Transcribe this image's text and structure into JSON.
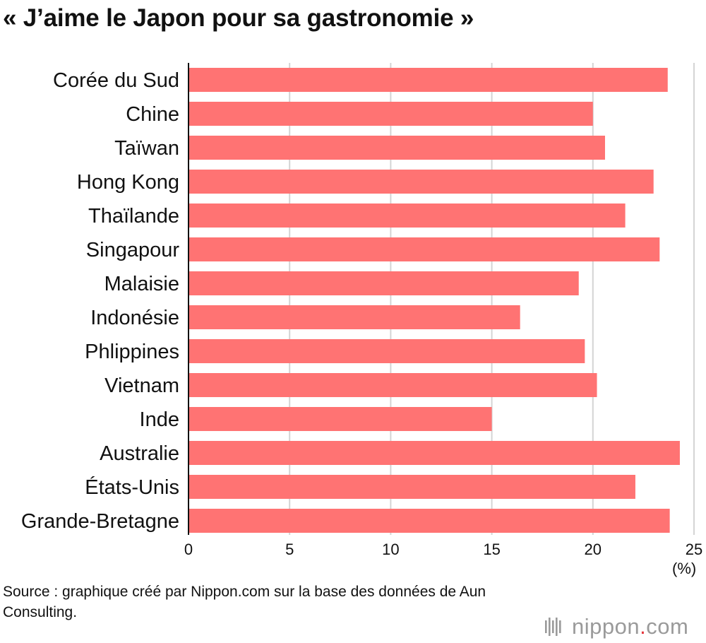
{
  "title": "« J’aime le Japon pour sa gastronomie »",
  "unit_label": "(%)",
  "source": "Source : graphique créé par Nippon.com sur la base des données de Aun Consulting.",
  "logo": {
    "name": "nippon",
    "dot": ".",
    "suffix": "com"
  },
  "colors": {
    "bar": "#ff7373",
    "grid": "#d4d4d4",
    "axis": "#111111",
    "text": "#111111"
  },
  "chart_data": {
    "type": "bar",
    "orientation": "horizontal",
    "title": "« J’aime le Japon pour sa gastronomie »",
    "xlabel": "(%)",
    "ylabel": "",
    "xlim": [
      0,
      25
    ],
    "ticks": [
      "0",
      "5",
      "10",
      "15",
      "20",
      "25"
    ],
    "grid": true,
    "categories": [
      "Corée du Sud",
      "Chine",
      "Taïwan",
      "Hong Kong",
      "Thaïlande",
      "Singapour",
      "Malaisie",
      "Indonésie",
      "Phlippines",
      "Vietnam",
      "Inde",
      "Australie",
      "États-Unis",
      "Grande-Bretagne"
    ],
    "values": [
      23.7,
      20.0,
      20.6,
      23.0,
      21.6,
      23.3,
      19.3,
      16.4,
      19.6,
      20.2,
      15.0,
      24.3,
      22.1,
      23.8
    ]
  }
}
